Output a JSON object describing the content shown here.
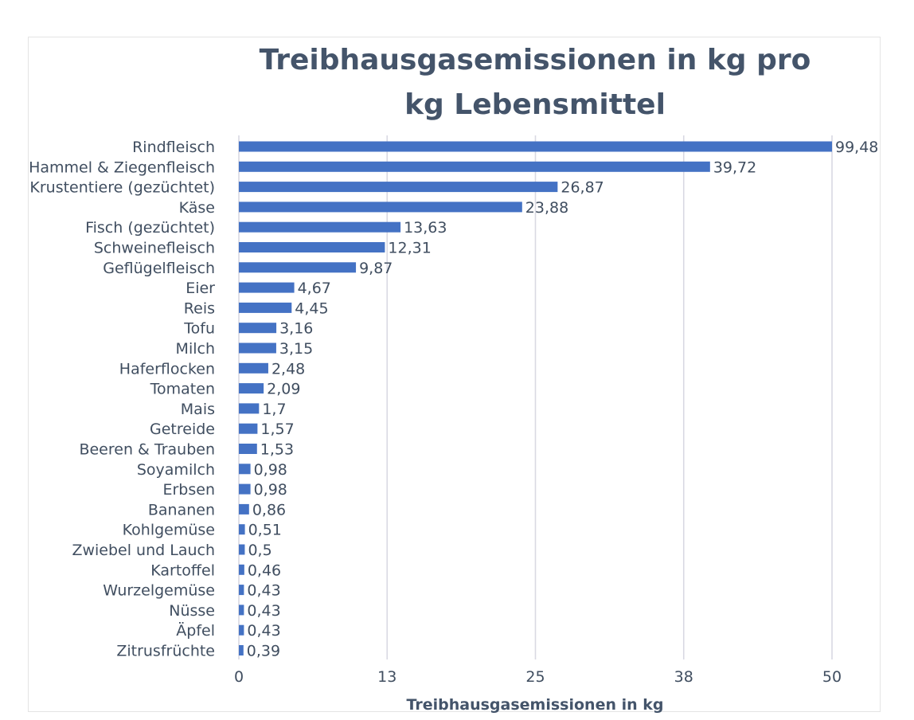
{
  "chart_data": {
    "type": "bar",
    "orientation": "horizontal",
    "title": "Treibhausgasemissionen in kg pro kg Lebensmittel",
    "xlabel": "Treibhausgasemissionen in kg",
    "ylabel": "",
    "xlim": [
      0,
      50
    ],
    "x_ticks": [
      "0",
      "13",
      "25",
      "38",
      "50"
    ],
    "grid": true,
    "bar_color": "#4472c4",
    "categories": [
      "Rindfleisch",
      "Hammel & Ziegenfleisch",
      "Krustentiere (gezüchtet)",
      "Käse",
      "Fisch (gezüchtet)",
      "Schweinefleisch",
      "Geflügelfleisch",
      "Eier",
      "Reis",
      "Tofu",
      "Milch",
      "Haferflocken",
      "Tomaten",
      "Mais",
      "Getreide",
      "Beeren & Trauben",
      "Soyamilch",
      "Erbsen",
      "Bananen",
      "Kohlgemüse",
      "Zwiebel und Lauch",
      "Kartoffel",
      "Wurzelgemüse",
      "Nüsse",
      "Äpfel",
      "Zitrusfrüchte"
    ],
    "values": [
      99.48,
      39.72,
      26.87,
      23.88,
      13.63,
      12.31,
      9.87,
      4.67,
      4.45,
      3.16,
      3.15,
      2.48,
      2.09,
      1.7,
      1.57,
      1.53,
      0.98,
      0.98,
      0.86,
      0.51,
      0.5,
      0.46,
      0.43,
      0.43,
      0.43,
      0.39
    ],
    "value_labels": [
      "99,48",
      "39,72",
      "26,87",
      "23,88",
      "13,63",
      "12,31",
      "9,87",
      "4,67",
      "4,45",
      "3,16",
      "3,15",
      "2,48",
      "2,09",
      "1,7",
      "1,57",
      "1,53",
      "0,98",
      "0,98",
      "0,86",
      "0,51",
      "0,5",
      "0,46",
      "0,43",
      "0,43",
      "0,43",
      "0,39"
    ]
  }
}
